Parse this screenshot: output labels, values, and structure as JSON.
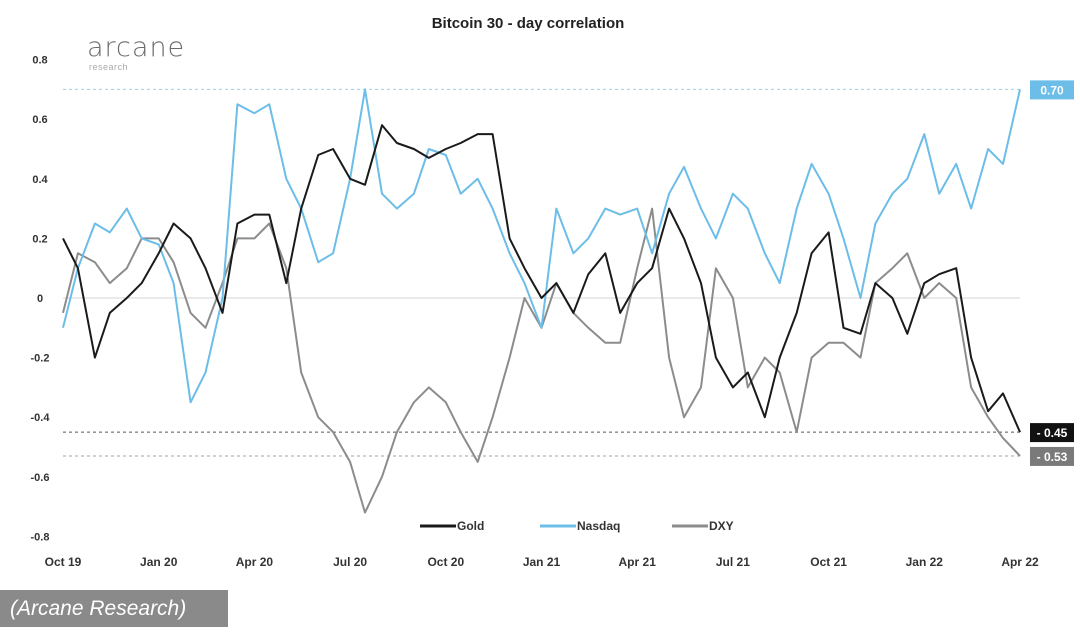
{
  "logo": {
    "name": "arcane",
    "sub": "research"
  },
  "caption": "(Arcane Research)",
  "chart_data": {
    "type": "line",
    "title": "Bitcoin 30 - day correlation",
    "xlabel": "",
    "ylabel": "",
    "ylim": [
      -0.8,
      0.8
    ],
    "yticks": [
      0.8,
      0.6,
      0.4,
      0.2,
      0,
      -0.2,
      -0.4,
      -0.6,
      -0.8
    ],
    "ytick_labels": [
      "0.8",
      "0.6",
      "0.4",
      "0.2",
      "0",
      "-0.2",
      "-0.4",
      "-0.6",
      "-0.8"
    ],
    "xtick_labels": [
      "Oct 19",
      "Jan 20",
      "Apr 20",
      "Jul 20",
      "Oct 20",
      "Jan 21",
      "Apr 21",
      "Jul 21",
      "Oct 21",
      "Jan 22",
      "Apr 22"
    ],
    "xticks": [
      "2019-10-01",
      "2020-01-01",
      "2020-04-01",
      "2020-07-01",
      "2020-10-01",
      "2021-01-01",
      "2021-04-01",
      "2021-07-01",
      "2021-10-01",
      "2022-01-01",
      "2022-04-01"
    ],
    "grid": false,
    "legend": "bottom-center",
    "x": [
      "2019-10-01",
      "2019-10-15",
      "2019-11-01",
      "2019-11-15",
      "2019-12-01",
      "2019-12-15",
      "2020-01-01",
      "2020-01-15",
      "2020-02-01",
      "2020-02-15",
      "2020-03-01",
      "2020-03-15",
      "2020-04-01",
      "2020-04-15",
      "2020-05-01",
      "2020-05-15",
      "2020-06-01",
      "2020-06-15",
      "2020-07-01",
      "2020-07-15",
      "2020-08-01",
      "2020-08-15",
      "2020-09-01",
      "2020-09-15",
      "2020-10-01",
      "2020-10-15",
      "2020-11-01",
      "2020-11-15",
      "2020-12-01",
      "2020-12-15",
      "2021-01-01",
      "2021-01-15",
      "2021-02-01",
      "2021-02-15",
      "2021-03-01",
      "2021-03-15",
      "2021-04-01",
      "2021-04-15",
      "2021-05-01",
      "2021-05-15",
      "2021-06-01",
      "2021-06-15",
      "2021-07-01",
      "2021-07-15",
      "2021-08-01",
      "2021-08-15",
      "2021-09-01",
      "2021-09-15",
      "2021-10-01",
      "2021-10-15",
      "2021-11-01",
      "2021-11-15",
      "2021-12-01",
      "2021-12-15",
      "2022-01-01",
      "2022-01-15",
      "2022-02-01",
      "2022-02-15",
      "2022-03-01",
      "2022-03-15",
      "2022-04-01"
    ],
    "series": [
      {
        "name": "Gold",
        "color": "#1a1a1a",
        "values": [
          0.2,
          0.1,
          -0.2,
          -0.05,
          0.0,
          0.05,
          0.15,
          0.25,
          0.2,
          0.1,
          -0.05,
          0.25,
          0.28,
          0.28,
          0.05,
          0.3,
          0.48,
          0.5,
          0.4,
          0.38,
          0.58,
          0.52,
          0.5,
          0.47,
          0.5,
          0.52,
          0.55,
          0.55,
          0.2,
          0.1,
          0.0,
          0.05,
          -0.05,
          0.08,
          0.15,
          -0.05,
          0.05,
          0.1,
          0.3,
          0.2,
          0.05,
          -0.2,
          -0.3,
          -0.25,
          -0.4,
          -0.2,
          -0.05,
          0.15,
          0.22,
          -0.1,
          -0.12,
          0.05,
          0.0,
          -0.12,
          0.05,
          0.08,
          0.1,
          -0.2,
          -0.38,
          -0.32,
          -0.45
        ]
      },
      {
        "name": "Nasdaq",
        "color": "#6cbde8",
        "values": [
          -0.1,
          0.1,
          0.25,
          0.22,
          0.3,
          0.2,
          0.18,
          0.05,
          -0.35,
          -0.25,
          0.0,
          0.65,
          0.62,
          0.65,
          0.4,
          0.3,
          0.12,
          0.15,
          0.4,
          0.7,
          0.35,
          0.3,
          0.35,
          0.5,
          0.48,
          0.35,
          0.4,
          0.3,
          0.15,
          0.05,
          -0.1,
          0.3,
          0.15,
          0.2,
          0.3,
          0.28,
          0.3,
          0.15,
          0.35,
          0.44,
          0.3,
          0.2,
          0.35,
          0.3,
          0.15,
          0.05,
          0.3,
          0.45,
          0.35,
          0.2,
          0.0,
          0.25,
          0.35,
          0.4,
          0.55,
          0.35,
          0.45,
          0.3,
          0.5,
          0.45,
          0.7
        ]
      },
      {
        "name": "DXY",
        "color": "#8c8c8c",
        "values": [
          -0.05,
          0.15,
          0.12,
          0.05,
          0.1,
          0.2,
          0.2,
          0.12,
          -0.05,
          -0.1,
          0.05,
          0.2,
          0.2,
          0.25,
          0.1,
          -0.25,
          -0.4,
          -0.45,
          -0.55,
          -0.72,
          -0.6,
          -0.45,
          -0.35,
          -0.3,
          -0.35,
          -0.45,
          -0.55,
          -0.4,
          -0.2,
          0.0,
          -0.1,
          0.05,
          -0.05,
          -0.1,
          -0.15,
          -0.15,
          0.1,
          0.3,
          -0.2,
          -0.4,
          -0.3,
          0.1,
          0.0,
          -0.3,
          -0.2,
          -0.25,
          -0.45,
          -0.2,
          -0.15,
          -0.15,
          -0.2,
          0.05,
          0.1,
          0.15,
          0.0,
          0.05,
          0.0,
          -0.3,
          -0.4,
          -0.47,
          -0.53
        ]
      }
    ],
    "annotations": [
      {
        "text": "0.70",
        "value": 0.7,
        "color": "#6cbde8"
      },
      {
        "text": "- 0.45",
        "value": -0.45,
        "color": "#111111"
      },
      {
        "text": "- 0.53",
        "value": -0.53,
        "color": "#7a7a7a"
      }
    ]
  }
}
